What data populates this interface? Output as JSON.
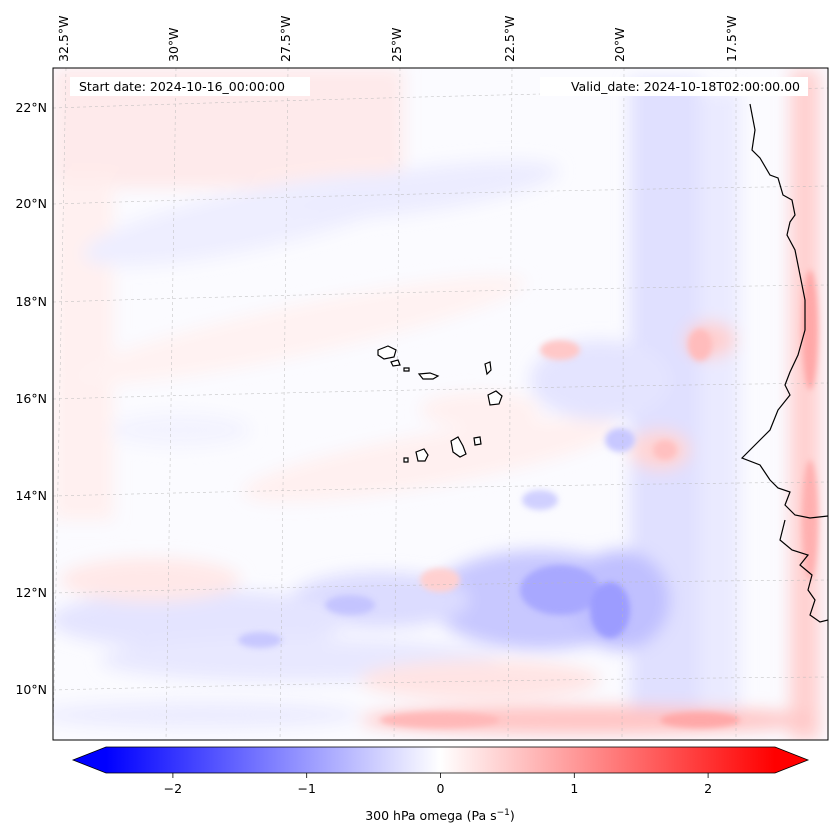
{
  "header": {
    "start_date": "Start date: 2024-10-16_00:00:00",
    "valid_date": "Valid_date: 2024-10-18T02:00:00.00"
  },
  "map": {
    "lon_labels": [
      "32.5°W",
      "30°W",
      "27.5°W",
      "25°W",
      "22.5°W",
      "20°W",
      "17.5°W"
    ],
    "lat_labels": [
      "22°N",
      "20°N",
      "18°N",
      "16°N",
      "14°N",
      "12°N",
      "10°N"
    ],
    "extent": {
      "lon_min": -33,
      "lon_max": -16.1,
      "lat_min": 8.9,
      "lat_max": 22.8
    }
  },
  "colorbar": {
    "ticks": [
      "−2",
      "−1",
      "0",
      "1",
      "2"
    ],
    "tick_values": [
      -2,
      -1,
      0,
      1,
      2
    ],
    "range": [
      -2.5,
      2.5
    ],
    "label_main": "300 hPa omega (Pa s",
    "label_sup": "−1",
    "label_end": ")",
    "colors": {
      "negative": "#0000ff",
      "zero": "#ffffff",
      "positive": "#ff0000"
    }
  }
}
